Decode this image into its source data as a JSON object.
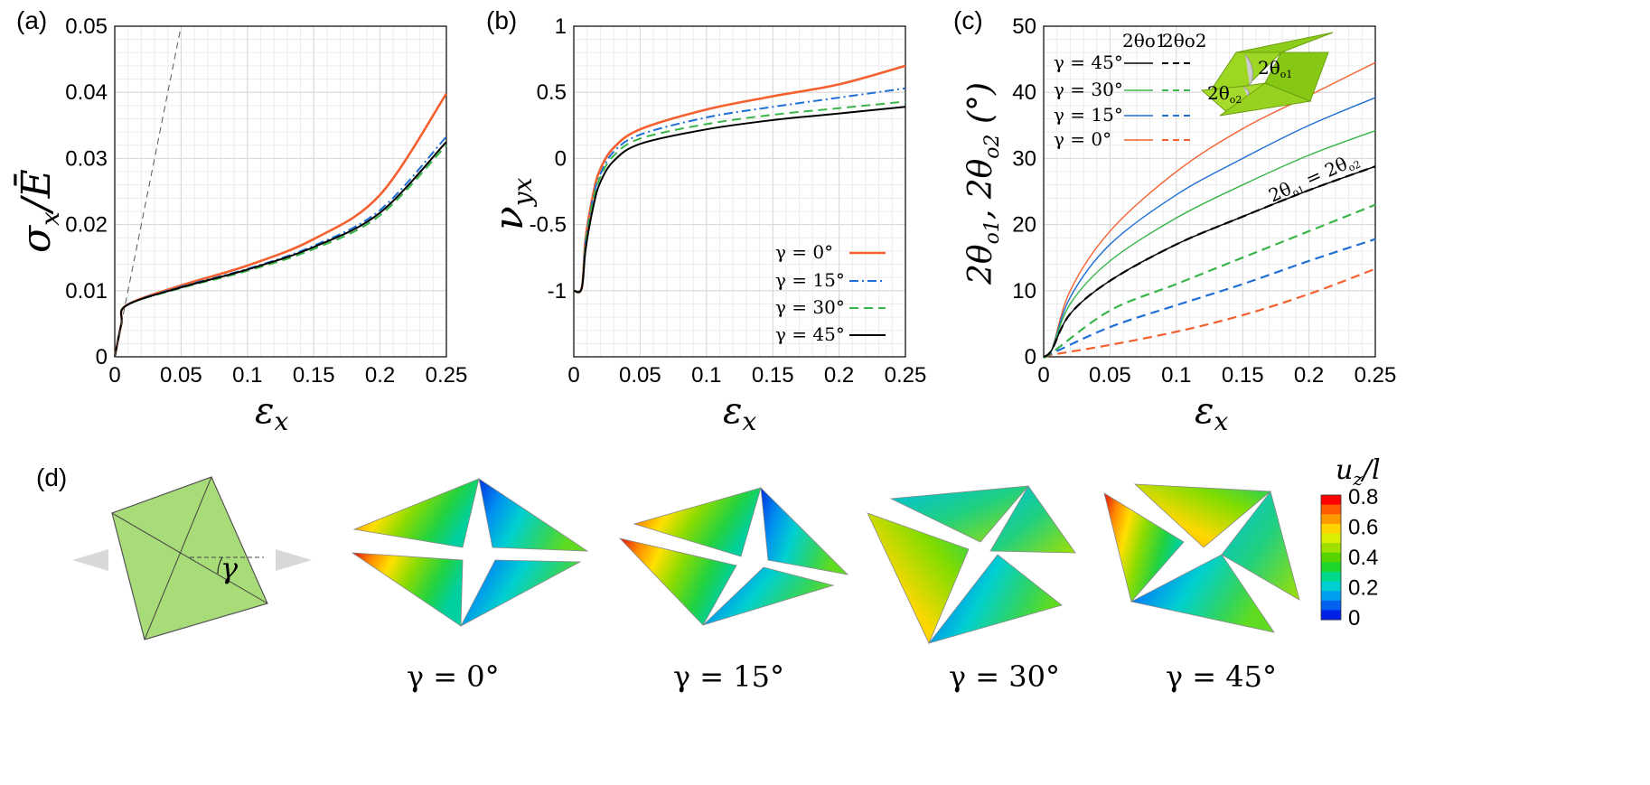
{
  "panels": {
    "a": "(a)",
    "b": "(b)",
    "c": "(c)",
    "d": "(d)"
  },
  "chart_data": [
    {
      "type": "line",
      "panel": "(a)",
      "xlabel": "εx",
      "ylabel": "σx/Ē",
      "xlim": [
        0,
        0.25
      ],
      "ylim": [
        0,
        0.05
      ],
      "xticks": [
        "0",
        "0.05",
        "0.1",
        "0.15",
        "0.2",
        "0.25"
      ],
      "yticks": [
        "0",
        "0.01",
        "0.02",
        "0.03",
        "0.04",
        "0.05"
      ],
      "grid": true,
      "series": [
        {
          "name": "γ = 0°",
          "color": "#f4602f",
          "dash": "solid",
          "x": [
            0,
            0.005,
            0.009,
            0.05,
            0.1,
            0.15,
            0.2,
            0.25
          ],
          "y": [
            0,
            0.005,
            0.0078,
            0.0108,
            0.0138,
            0.0178,
            0.0245,
            0.0398
          ]
        },
        {
          "name": "γ = 15°",
          "color": "#1f6fd6",
          "dash": "dashdot",
          "x": [
            0,
            0.005,
            0.009,
            0.05,
            0.1,
            0.15,
            0.2,
            0.25
          ],
          "y": [
            0,
            0.005,
            0.0078,
            0.0106,
            0.0133,
            0.0168,
            0.0222,
            0.0333
          ]
        },
        {
          "name": "γ = 30°",
          "color": "#39b54a",
          "dash": "dashed",
          "x": [
            0,
            0.005,
            0.009,
            0.05,
            0.1,
            0.15,
            0.2,
            0.25
          ],
          "y": [
            0,
            0.005,
            0.0078,
            0.0104,
            0.013,
            0.0163,
            0.0214,
            0.032
          ]
        },
        {
          "name": "γ = 45°",
          "color": "#000000",
          "dash": "solid",
          "x": [
            0,
            0.005,
            0.009,
            0.05,
            0.1,
            0.15,
            0.2,
            0.25
          ],
          "y": [
            0,
            0.005,
            0.0078,
            0.0105,
            0.0132,
            0.0166,
            0.0218,
            0.0325
          ]
        },
        {
          "name": "",
          "color": "#555555",
          "dash": "dashed-thin",
          "x": [
            0,
            0.05
          ],
          "y": [
            0,
            0.05
          ]
        }
      ]
    },
    {
      "type": "line",
      "panel": "(b)",
      "xlabel": "εx",
      "ylabel": "νyx",
      "xlim": [
        0,
        0.25
      ],
      "ylim": [
        -1.5,
        1
      ],
      "xticks": [
        "0",
        "0.05",
        "0.1",
        "0.15",
        "0.2",
        "0.25"
      ],
      "yticks": [
        "-1",
        "-0.5",
        "0",
        "0.5",
        "1"
      ],
      "ytickvals": [
        -1,
        -0.5,
        0,
        0.5,
        1
      ],
      "grid": true,
      "legend": "bottom-right",
      "series": [
        {
          "name": "γ = 0°",
          "color": "#f4602f",
          "dash": "solid",
          "x": [
            0,
            0.006,
            0.009,
            0.015,
            0.02,
            0.03,
            0.05,
            0.1,
            0.15,
            0.2,
            0.25
          ],
          "y": [
            -1,
            -0.98,
            -0.6,
            -0.25,
            -0.08,
            0.08,
            0.22,
            0.37,
            0.47,
            0.56,
            0.7
          ]
        },
        {
          "name": "γ = 15°",
          "color": "#1f6fd6",
          "dash": "dashdot",
          "x": [
            0,
            0.006,
            0.009,
            0.015,
            0.02,
            0.03,
            0.05,
            0.1,
            0.15,
            0.2,
            0.25
          ],
          "y": [
            -1,
            -0.98,
            -0.62,
            -0.28,
            -0.12,
            0.05,
            0.18,
            0.31,
            0.39,
            0.46,
            0.53
          ]
        },
        {
          "name": "γ = 30°",
          "color": "#39b54a",
          "dash": "dashed",
          "x": [
            0,
            0.006,
            0.009,
            0.015,
            0.02,
            0.03,
            0.05,
            0.1,
            0.15,
            0.2,
            0.25
          ],
          "y": [
            -1,
            -0.98,
            -0.64,
            -0.3,
            -0.14,
            0.02,
            0.15,
            0.26,
            0.33,
            0.38,
            0.43
          ]
        },
        {
          "name": "γ = 45°",
          "color": "#000000",
          "dash": "solid",
          "x": [
            0,
            0.006,
            0.009,
            0.015,
            0.02,
            0.03,
            0.05,
            0.1,
            0.15,
            0.2,
            0.25
          ],
          "y": [
            -1,
            -0.98,
            -0.68,
            -0.35,
            -0.18,
            -0.02,
            0.11,
            0.22,
            0.29,
            0.34,
            0.39
          ]
        }
      ]
    },
    {
      "type": "line",
      "panel": "(c)",
      "xlabel": "εx",
      "ylabel": "2θo1, 2θo2 (°)",
      "xlim": [
        0,
        0.25
      ],
      "ylim": [
        0,
        50
      ],
      "xticks": [
        "0",
        "0.05",
        "0.1",
        "0.15",
        "0.2",
        "0.25"
      ],
      "yticks": [
        "0",
        "10",
        "20",
        "30",
        "40",
        "50"
      ],
      "grid": true,
      "legend": "top-left",
      "legend_headers": [
        "2θo1",
        "2θo2"
      ],
      "annotation": "2θo1 = 2θo2",
      "inset_labels": [
        "2θo1",
        "2θo2"
      ],
      "series": [
        {
          "name": "γ = 0°",
          "angle": "2θo1",
          "color": "#f4602f",
          "dash": "solid",
          "x": [
            0,
            0.006,
            0.02,
            0.05,
            0.1,
            0.15,
            0.2,
            0.25
          ],
          "y": [
            0,
            1,
            10,
            19,
            28,
            34.5,
            39.5,
            44.5
          ]
        },
        {
          "name": "γ = 15°",
          "angle": "2θo1",
          "color": "#1f6fd6",
          "dash": "solid",
          "x": [
            0,
            0.006,
            0.02,
            0.05,
            0.1,
            0.15,
            0.2,
            0.25
          ],
          "y": [
            0,
            1,
            9,
            17,
            24.5,
            30,
            35,
            39.2
          ]
        },
        {
          "name": "γ = 30°",
          "angle": "2θo1",
          "color": "#39b54a",
          "dash": "solid",
          "x": [
            0,
            0.006,
            0.02,
            0.05,
            0.1,
            0.15,
            0.2,
            0.25
          ],
          "y": [
            0,
            1,
            8,
            14.5,
            21,
            26,
            30.5,
            34.2
          ]
        },
        {
          "name": "γ = 45°",
          "angle": "2θo1",
          "color": "#000000",
          "dash": "solid",
          "x": [
            0,
            0.006,
            0.02,
            0.05,
            0.1,
            0.15,
            0.2,
            0.25
          ],
          "y": [
            0,
            1,
            6.5,
            11.5,
            17,
            21.2,
            25.2,
            28.8
          ]
        },
        {
          "name": "γ = 0°",
          "angle": "2θo2",
          "color": "#f4602f",
          "dash": "dashed",
          "x": [
            0,
            0.006,
            0.05,
            0.1,
            0.15,
            0.2,
            0.25
          ],
          "y": [
            0,
            0.3,
            1.8,
            3.8,
            6.3,
            9.5,
            13.3
          ]
        },
        {
          "name": "γ = 15°",
          "angle": "2θo2",
          "color": "#1f6fd6",
          "dash": "dashed",
          "x": [
            0,
            0.006,
            0.05,
            0.1,
            0.15,
            0.2,
            0.25
          ],
          "y": [
            0,
            0.5,
            4.5,
            7.8,
            11,
            14.5,
            17.8
          ]
        },
        {
          "name": "γ = 30°",
          "angle": "2θo2",
          "color": "#39b54a",
          "dash": "dashed",
          "x": [
            0,
            0.006,
            0.05,
            0.1,
            0.15,
            0.2,
            0.25
          ],
          "y": [
            0,
            0.6,
            7,
            11,
            15,
            19,
            23
          ]
        },
        {
          "name": "γ = 45°",
          "angle": "2θo2",
          "color": "#000000",
          "dash": "dashed",
          "x": [
            0,
            0.006,
            0.02,
            0.05,
            0.1,
            0.15,
            0.2,
            0.25
          ],
          "y": [
            0,
            1,
            6.5,
            11.5,
            17,
            21.2,
            25.2,
            28.8
          ]
        }
      ]
    }
  ],
  "legend_b": [
    {
      "label": "γ = 0°",
      "color": "#f4602f",
      "dash": "solid"
    },
    {
      "label": "γ = 15°",
      "color": "#1f6fd6",
      "dash": "dashdot"
    },
    {
      "label": "γ = 30°",
      "color": "#39b54a",
      "dash": "dashed"
    },
    {
      "label": "γ = 45°",
      "color": "#000000",
      "dash": "solid"
    }
  ],
  "legend_c": [
    {
      "label": "γ = 45°",
      "color": "#000000"
    },
    {
      "label": "γ = 30°",
      "color": "#39b54a"
    },
    {
      "label": "γ = 15°",
      "color": "#1f6fd6"
    },
    {
      "label": "γ = 0°",
      "color": "#f4602f"
    }
  ],
  "panel_d": {
    "schematic_label": "γ",
    "cases": [
      "γ = 0°",
      "γ = 15°",
      "γ = 30°",
      "γ = 45°"
    ],
    "colorbar": {
      "title": "uz/l",
      "ticks": [
        "0.8",
        "0.6",
        "0.4",
        "0.2",
        "0"
      ],
      "colors": [
        "#ff0000",
        "#ff5a00",
        "#ff9900",
        "#ffd400",
        "#d9ee00",
        "#9fe000",
        "#55d400",
        "#1ed628",
        "#00d98a",
        "#00cfd2",
        "#00a0f0",
        "#0060f0",
        "#0020e8"
      ]
    }
  }
}
